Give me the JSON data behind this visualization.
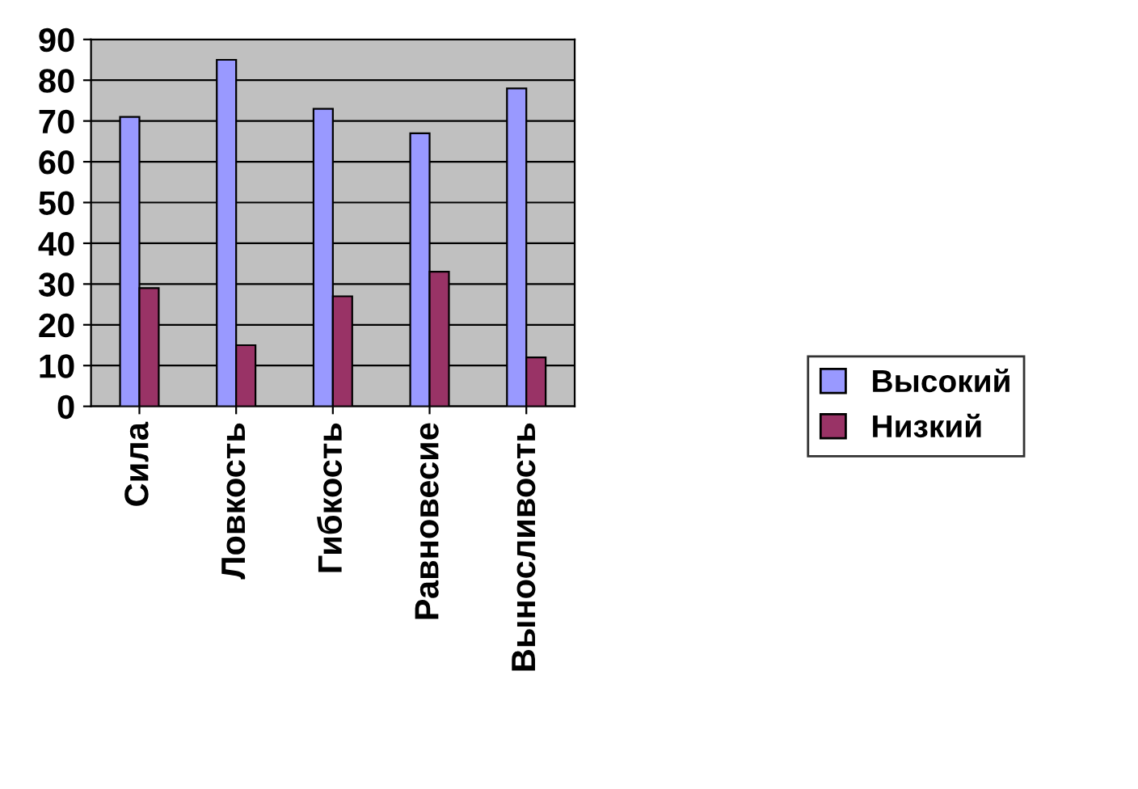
{
  "chart_data": {
    "type": "bar",
    "categories": [
      "Сила",
      "Ловкость",
      "Гибкость",
      "Равновесие",
      "Выносливость"
    ],
    "series": [
      {
        "name": "Высокий",
        "color": "#9999ff",
        "values": [
          71,
          85,
          73,
          67,
          78
        ]
      },
      {
        "name": "Низкий",
        "color": "#993366",
        "values": [
          29,
          15,
          27,
          33,
          12
        ]
      }
    ],
    "ylim": [
      0,
      90
    ],
    "yticks": [
      0,
      10,
      20,
      30,
      40,
      50,
      60,
      70,
      80,
      90
    ],
    "grid": "y",
    "legend": "right"
  }
}
